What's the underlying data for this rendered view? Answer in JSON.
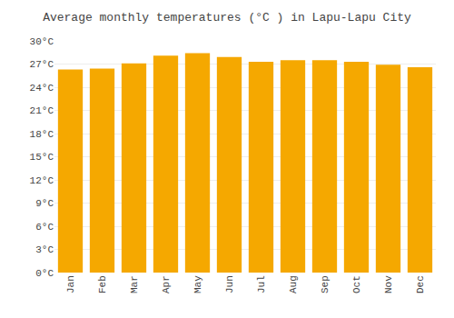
{
  "chart_data": {
    "type": "bar",
    "title": "Average monthly temperatures (°C ) in Lapu-Lapu City",
    "categories": [
      "Jan",
      "Feb",
      "Mar",
      "Apr",
      "May",
      "Jun",
      "Jul",
      "Aug",
      "Sep",
      "Oct",
      "Nov",
      "Dec"
    ],
    "values": [
      26.3,
      26.4,
      27.1,
      28.1,
      28.4,
      27.9,
      27.3,
      27.5,
      27.5,
      27.3,
      26.9,
      26.6
    ],
    "color": "#F5A800",
    "ylim": [
      0,
      30
    ],
    "yticks": [
      {
        "value": 0,
        "label": "0°C"
      },
      {
        "value": 3,
        "label": "3°C"
      },
      {
        "value": 6,
        "label": "6°C"
      },
      {
        "value": 9,
        "label": "9°C"
      },
      {
        "value": 12,
        "label": "12°C"
      },
      {
        "value": 15,
        "label": "15°C"
      },
      {
        "value": 18,
        "label": "18°C"
      },
      {
        "value": 21,
        "label": "21°C"
      },
      {
        "value": 24,
        "label": "24°C"
      },
      {
        "value": 27,
        "label": "27°C"
      },
      {
        "value": 30,
        "label": "30°C"
      }
    ],
    "grid": true
  }
}
